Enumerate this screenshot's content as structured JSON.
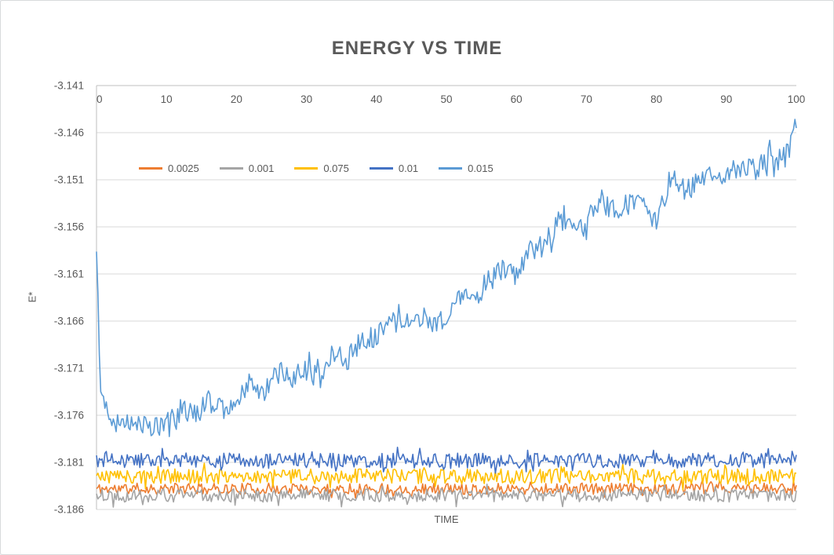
{
  "chart_data": {
    "type": "line",
    "title": "ENERGY VS TIME",
    "xlabel": "TIME",
    "ylabel": "E*",
    "xlim": [
      0,
      100
    ],
    "ylim": [
      -3.186,
      -3.141
    ],
    "x_ticks": [
      0,
      10,
      20,
      30,
      40,
      50,
      60,
      70,
      80,
      90,
      100
    ],
    "y_ticks": [
      -3.141,
      -3.146,
      -3.151,
      -3.156,
      -3.161,
      -3.166,
      -3.171,
      -3.176,
      -3.181,
      -3.186
    ],
    "grid": true,
    "x_axis_position": "top",
    "legend_position": "inside-top-left",
    "colors": {
      "grid": "#D9D9D9",
      "axis": "#BFBFBF",
      "text": "#595959",
      "background": "#FFFFFF"
    },
    "series": [
      {
        "name": "0.0025",
        "color": "#ED7D31",
        "seed": 11,
        "noise": 0.0006,
        "baseline": -3.1838
      },
      {
        "name": "0.001",
        "color": "#A5A5A5",
        "seed": 22,
        "noise": 0.0007,
        "baseline": -3.1845
      },
      {
        "name": "0.075",
        "color": "#FFC000",
        "seed": 33,
        "noise": 0.0008,
        "baseline": -3.1825
      },
      {
        "name": "0.01",
        "color": "#4472C4",
        "seed": 44,
        "noise": 0.0008,
        "baseline": -3.1808
      },
      {
        "name": "0.015",
        "color": "#5B9BD5",
        "seed": 55,
        "noise": 0.0012,
        "anchors": [
          [
            0,
            -3.1585
          ],
          [
            0.6,
            -3.1735
          ],
          [
            2,
            -3.176
          ],
          [
            4,
            -3.177
          ],
          [
            6,
            -3.1765
          ],
          [
            8,
            -3.1775
          ],
          [
            10,
            -3.1765
          ],
          [
            12,
            -3.1755
          ],
          [
            14,
            -3.176
          ],
          [
            16,
            -3.1745
          ],
          [
            18,
            -3.1755
          ],
          [
            20,
            -3.174
          ],
          [
            22,
            -3.1725
          ],
          [
            24,
            -3.1735
          ],
          [
            26,
            -3.1715
          ],
          [
            28,
            -3.172
          ],
          [
            30,
            -3.1712
          ],
          [
            32,
            -3.172
          ],
          [
            34,
            -3.1695
          ],
          [
            36,
            -3.17
          ],
          [
            38,
            -3.168
          ],
          [
            40,
            -3.1678
          ],
          [
            42,
            -3.166
          ],
          [
            44,
            -3.1665
          ],
          [
            46,
            -3.1655
          ],
          [
            48,
            -3.166
          ],
          [
            50,
            -3.1658
          ],
          [
            52,
            -3.1635
          ],
          [
            54,
            -3.164
          ],
          [
            56,
            -3.1615
          ],
          [
            58,
            -3.1605
          ],
          [
            60,
            -3.1612
          ],
          [
            62,
            -3.1585
          ],
          [
            64,
            -3.158
          ],
          [
            66,
            -3.1555
          ],
          [
            68,
            -3.156
          ],
          [
            70,
            -3.1562
          ],
          [
            72,
            -3.153
          ],
          [
            74,
            -3.1545
          ],
          [
            76,
            -3.1535
          ],
          [
            78,
            -3.1525
          ],
          [
            80,
            -3.1558
          ],
          [
            82,
            -3.1508
          ],
          [
            84,
            -3.152
          ],
          [
            86,
            -3.1515
          ],
          [
            88,
            -3.1505
          ],
          [
            90,
            -3.1508
          ],
          [
            92,
            -3.1495
          ],
          [
            94,
            -3.15
          ],
          [
            96,
            -3.1485
          ],
          [
            98,
            -3.149
          ],
          [
            99.5,
            -3.147
          ],
          [
            100,
            -3.1445
          ]
        ]
      }
    ]
  }
}
